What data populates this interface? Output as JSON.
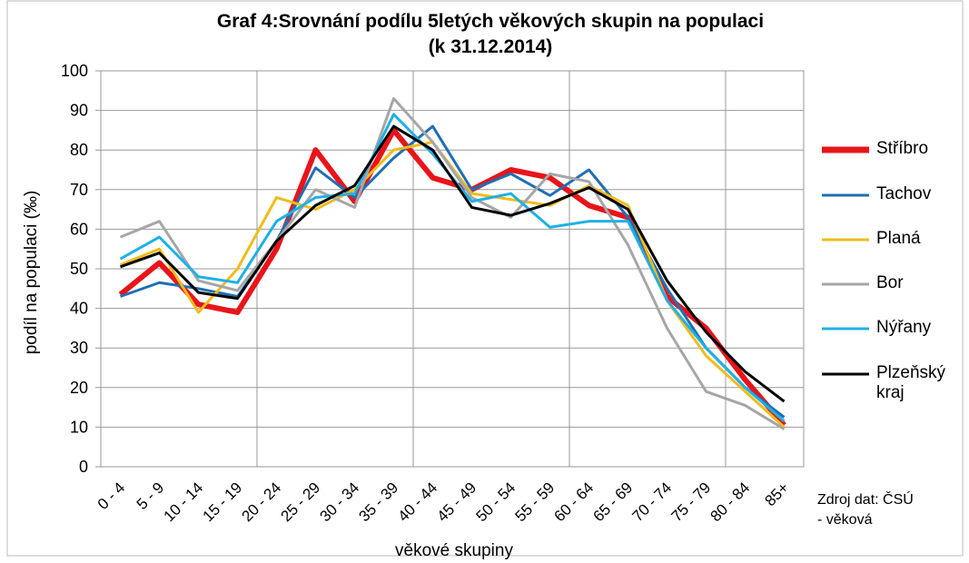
{
  "chart_data": {
    "type": "line",
    "title": "Graf 4:Srovnání podílu 5letých věkových skupin na populaci",
    "subtitle": "(k 31.12.2014)",
    "y_label": "podíl na populaci (‰)",
    "x_label": "věkové skupiny",
    "source": "Zdroj dat: ČSÚ - věková",
    "categories": [
      "0 - 4",
      "5 - 9",
      "10 - 14",
      "15 - 19",
      "20 - 24",
      "25 - 29",
      "30 - 34",
      "35 - 39",
      "40 - 44",
      "45 - 49",
      "50 - 54",
      "55 - 59",
      "60 - 64",
      "65 - 69",
      "70 - 74",
      "75 - 79",
      "80 - 84",
      "85+"
    ],
    "series": [
      {
        "name": "Stříbro",
        "color": "#e8141a",
        "values": [
          43.5,
          51.5,
          41,
          39,
          55,
          80,
          67,
          85,
          73,
          70,
          75,
          73,
          66,
          63,
          43,
          35,
          22,
          10.5
        ]
      },
      {
        "name": "Tachov",
        "color": "#1f6fb4",
        "values": [
          43,
          46.5,
          45,
          43,
          57,
          75.5,
          68,
          78,
          86,
          70,
          74,
          68.5,
          75,
          63,
          45,
          30,
          20,
          12.5
        ]
      },
      {
        "name": "Planá",
        "color": "#f0bc1a",
        "values": [
          51,
          55,
          39,
          50,
          68,
          65,
          70,
          80,
          82,
          69,
          67.5,
          66,
          71,
          66,
          42,
          28,
          19,
          10
        ]
      },
      {
        "name": "Bor",
        "color": "#a6a6a6",
        "values": [
          58,
          62,
          47,
          44.5,
          57,
          70,
          65.5,
          93,
          82,
          68,
          63,
          74,
          72,
          56,
          35,
          19,
          15.5,
          9.5
        ]
      },
      {
        "name": "Nýřany",
        "color": "#1fb0e6",
        "values": [
          52.5,
          58,
          48,
          46.5,
          62,
          68,
          69,
          89,
          79,
          67,
          69,
          60.5,
          62,
          62,
          42,
          30,
          20,
          11.5
        ]
      },
      {
        "name": "Plzeňský kraj",
        "color": "#000000",
        "values": [
          50.5,
          54,
          44,
          42.5,
          57,
          66,
          71,
          86,
          80,
          65.5,
          63.5,
          66.5,
          70.5,
          65,
          47,
          34,
          24,
          16.5
        ]
      }
    ],
    "ylim": [
      0,
      100
    ],
    "yticks": [
      0,
      10,
      20,
      30,
      40,
      50,
      60,
      70,
      80,
      90,
      100
    ],
    "grid": true,
    "legend": "right"
  }
}
